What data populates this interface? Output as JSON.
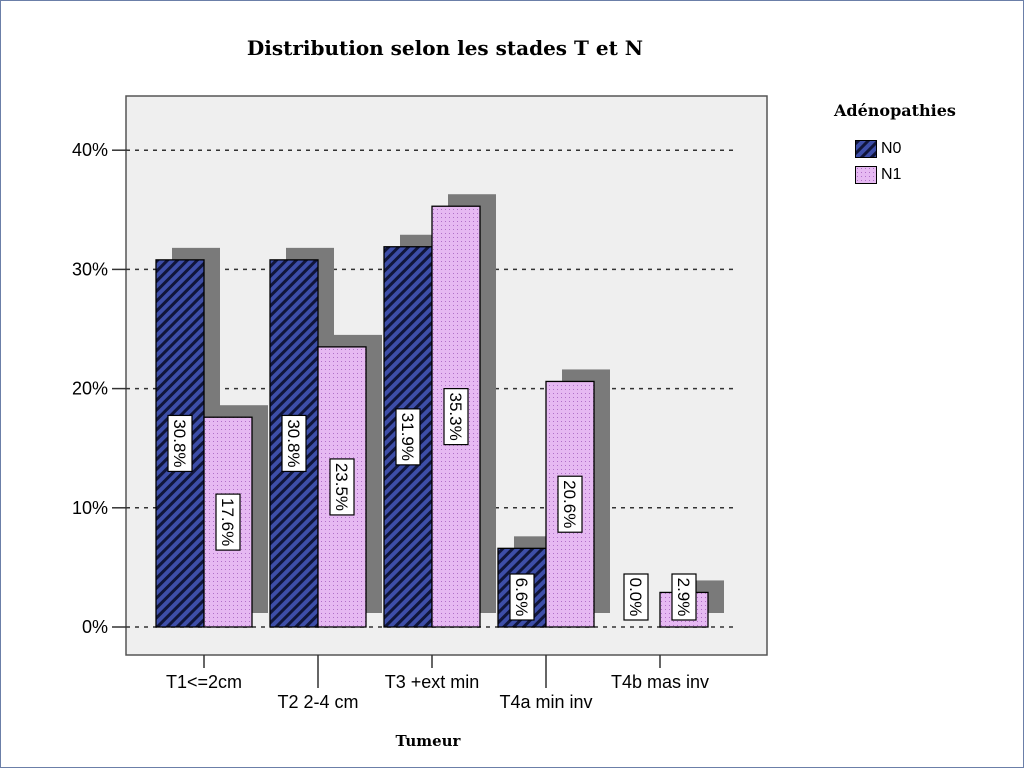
{
  "chart_data": {
    "type": "bar",
    "title": "Distribution selon les stades T et N",
    "xlabel": "Tumeur",
    "ylabel": "",
    "ylim": [
      0,
      45
    ],
    "yticks": [
      0,
      10,
      20,
      30,
      40
    ],
    "ytick_labels": [
      "0%",
      "10%",
      "20%",
      "30%",
      "40%"
    ],
    "grid": true,
    "legend": {
      "title": "Adénopathies",
      "position": "right"
    },
    "categories": [
      "T1<=2cm",
      "T2 2-4 cm",
      "T3  +ext min",
      "T4a min inv",
      "T4b mas inv"
    ],
    "series": [
      {
        "name": "N0",
        "values": [
          30.8,
          30.8,
          31.9,
          6.6,
          0.0
        ],
        "labels": [
          "30.8%",
          "30.8%",
          "31.9%",
          "6.6%",
          "0.0%"
        ]
      },
      {
        "name": "N1",
        "values": [
          17.6,
          23.5,
          35.3,
          20.6,
          2.9
        ],
        "labels": [
          "17.6%",
          "23.5%",
          "35.3%",
          "20.6%",
          "2.9%"
        ]
      }
    ]
  },
  "colors": {
    "n0_fill": "#3d4ea8",
    "n0_stripe": "#10153a",
    "n1_fill": "#e6b9f2",
    "n1_dots": "#b070c8",
    "plot_bg": "#efefef",
    "shadow": "#7a7a7a"
  }
}
